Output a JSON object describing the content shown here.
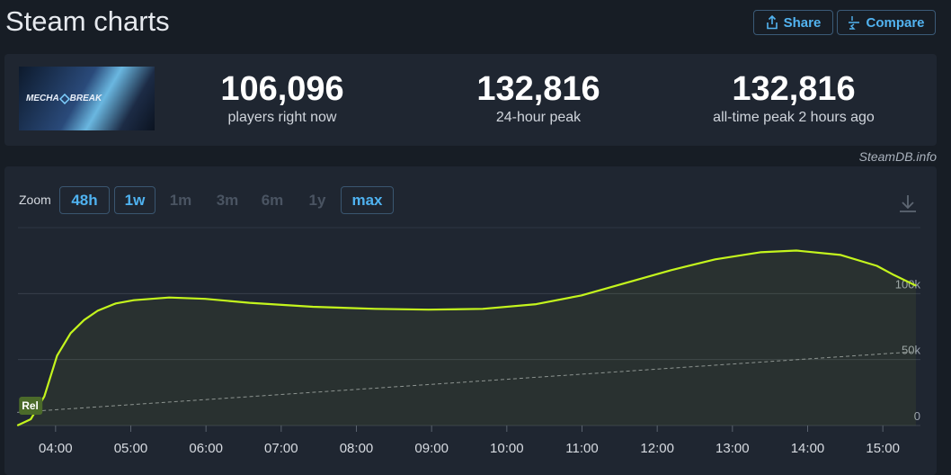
{
  "header": {
    "title": "Steam charts",
    "share": "Share",
    "compare": "Compare"
  },
  "thumbnail": {
    "logo_left": "MECHA",
    "logo_right": "BREAK"
  },
  "stats": [
    {
      "value": "106,096",
      "label": "players right now"
    },
    {
      "value": "132,816",
      "label": "24-hour peak"
    },
    {
      "value": "132,816",
      "label": "all-time peak 2 hours ago"
    }
  ],
  "source": "SteamDB.info",
  "zoom": {
    "label": "Zoom",
    "buttons": [
      {
        "label": "48h",
        "active": true
      },
      {
        "label": "1w",
        "active": true
      },
      {
        "label": "1m",
        "active": false
      },
      {
        "label": "3m",
        "active": false
      },
      {
        "label": "6m",
        "active": false
      },
      {
        "label": "1y",
        "active": false
      },
      {
        "label": "max",
        "active": true
      }
    ]
  },
  "chart_data": {
    "type": "line",
    "x": [
      3.49,
      3.67,
      3.85,
      4.02,
      4.2,
      4.38,
      4.56,
      4.8,
      5.04,
      5.51,
      5.99,
      6.58,
      7.42,
      8.25,
      8.96,
      9.68,
      10.39,
      10.99,
      11.58,
      12.18,
      12.77,
      13.37,
      13.85,
      14.44,
      14.92,
      15.15,
      15.44
    ],
    "series": [
      {
        "color": "#c4f51d",
        "values": [
          0,
          4800,
          22000,
          53000,
          70000,
          80000,
          87000,
          92500,
          95000,
          97000,
          96000,
          93000,
          90000,
          88400,
          87800,
          88400,
          92000,
          98600,
          108000,
          117700,
          125900,
          131300,
          132600,
          129300,
          121000,
          114000,
          106000
        ]
      }
    ],
    "trend_line": {
      "x": [
        3.49,
        15.44
      ],
      "values": [
        10000,
        56000
      ],
      "color": "#8a8f98"
    },
    "annotation": {
      "x": 3.67,
      "text": "Rel"
    },
    "xlim": [
      3.5,
      15.5
    ],
    "xticks": [
      {
        "value": 4,
        "label": "04:00"
      },
      {
        "value": 5,
        "label": "05:00"
      },
      {
        "value": 6,
        "label": "06:00"
      },
      {
        "value": 7,
        "label": "07:00"
      },
      {
        "value": 8,
        "label": "08:00"
      },
      {
        "value": 9,
        "label": "09:00"
      },
      {
        "value": 10,
        "label": "10:00"
      },
      {
        "value": 11,
        "label": "11:00"
      },
      {
        "value": 12,
        "label": "12:00"
      },
      {
        "value": 13,
        "label": "13:00"
      },
      {
        "value": 14,
        "label": "14:00"
      },
      {
        "value": 15,
        "label": "15:00"
      }
    ],
    "ylim": [
      0,
      150000
    ],
    "yticks": [
      0,
      {
        "value": 50000,
        "label": "50k"
      },
      {
        "value": 100000,
        "label": "100k"
      }
    ],
    "grid": true
  }
}
